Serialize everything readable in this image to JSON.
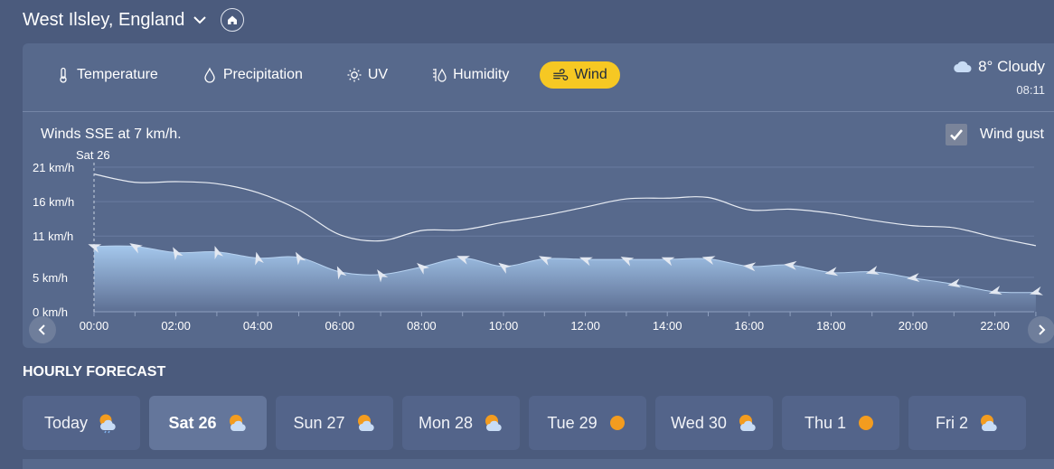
{
  "location": {
    "name": "West Ilsley, England"
  },
  "icons": {
    "dropdown": "chevron-down-icon",
    "home": "home-icon",
    "prev": "chevron-left-icon",
    "next": "chevron-right-icon",
    "checkbox": "check-icon"
  },
  "tabs": [
    {
      "label": "Temperature",
      "icon": "thermometer-icon",
      "active": false
    },
    {
      "label": "Precipitation",
      "icon": "droplet-icon",
      "active": false
    },
    {
      "label": "UV",
      "icon": "sun-icon",
      "active": false
    },
    {
      "label": "Humidity",
      "icon": "humidity-icon",
      "active": false
    },
    {
      "label": "Wind",
      "icon": "wind-icon",
      "active": true
    }
  ],
  "current": {
    "temp": "8°",
    "condition": "Cloudy",
    "time": "08:11",
    "icon": "cloud-icon"
  },
  "chart": {
    "summary": "Winds SSE at 7 km/h.",
    "gust_label": "Wind gust",
    "gust_checked": true,
    "day_marker": "Sat 26"
  },
  "chart_data": {
    "type": "area",
    "ylabel_unit": "km/h",
    "ylim": [
      0,
      21
    ],
    "yticks": [
      "21 km/h",
      "16 km/h",
      "11 km/h",
      "5 km/h",
      "0 km/h"
    ],
    "ytick_values": [
      21,
      16,
      11,
      5,
      0
    ],
    "xticks": [
      "00:00",
      "02:00",
      "04:00",
      "06:00",
      "08:00",
      "10:00",
      "12:00",
      "14:00",
      "16:00",
      "18:00",
      "20:00",
      "22:00"
    ],
    "hours": [
      0,
      1,
      2,
      3,
      4,
      5,
      6,
      7,
      8,
      9,
      10,
      11,
      12,
      13,
      14,
      15,
      16,
      17,
      18,
      19,
      20,
      21,
      22,
      23
    ],
    "series": [
      {
        "name": "Wind",
        "values": [
          9.5,
          9.5,
          8.6,
          8.7,
          7.8,
          7.9,
          5.8,
          5.4,
          6.5,
          7.8,
          6.6,
          7.7,
          7.6,
          7.6,
          7.6,
          7.7,
          6.6,
          6.8,
          5.7,
          5.8,
          4.9,
          4,
          2.9,
          2.8
        ]
      },
      {
        "name": "Wind gust",
        "values": [
          20,
          18.8,
          18.9,
          18.6,
          17.3,
          14.8,
          11.2,
          10.3,
          11.8,
          11.9,
          13,
          14,
          15.2,
          16.4,
          16.5,
          16.6,
          14.8,
          14.9,
          14.3,
          13.3,
          12.5,
          12.2,
          10.8,
          9.6
        ]
      }
    ],
    "direction_deg": [
      200,
      210,
      240,
      250,
      255,
      240,
      245,
      235,
      220,
      200,
      215,
      205,
      200,
      205,
      200,
      195,
      185,
      185,
      170,
      165,
      175,
      170,
      165,
      165
    ]
  },
  "hourly": {
    "title": "HOURLY FORECAST",
    "days": [
      {
        "label": "Today",
        "icon": "sun-cloud-rain-icon",
        "active": false
      },
      {
        "label": "Sat 26",
        "icon": "sun-cloud-icon",
        "active": true
      },
      {
        "label": "Sun 27",
        "icon": "sun-cloud-icon",
        "active": false
      },
      {
        "label": "Mon 28",
        "icon": "sun-cloud-icon",
        "active": false
      },
      {
        "label": "Tue 29",
        "icon": "sun-icon",
        "active": false
      },
      {
        "label": "Wed 30",
        "icon": "sun-cloud-icon",
        "active": false
      },
      {
        "label": "Thu 1",
        "icon": "sun-icon",
        "active": false
      },
      {
        "label": "Fri 2",
        "icon": "sun-cloud-icon",
        "active": false
      }
    ]
  },
  "colors": {
    "accent": "#f6c823",
    "area_top": "#9ec3ea",
    "area_bottom": "#5a6b8d",
    "gust_line": "#e8ecf3",
    "panel": "#57698c",
    "background": "#4b5b7d"
  }
}
